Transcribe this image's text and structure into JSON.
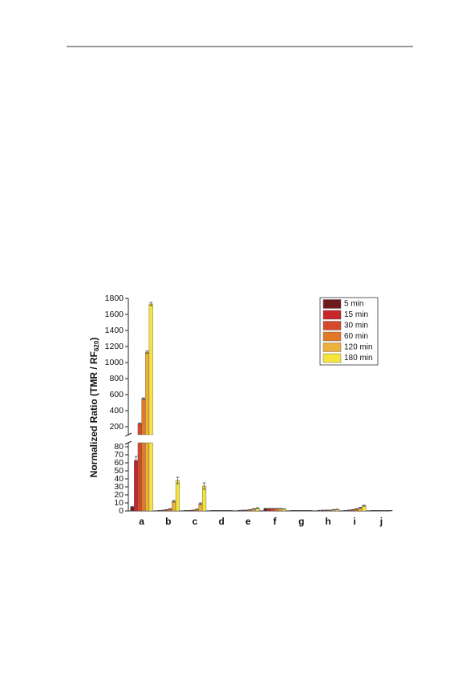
{
  "chart_data": {
    "type": "broken-bar",
    "y_label": {
      "main": "Normalized Ratio (TMR / RF",
      "subscript": "620",
      "end": ")"
    },
    "categories": [
      "a",
      "b",
      "c",
      "d",
      "e",
      "f",
      "g",
      "h",
      "i",
      "j"
    ],
    "ylim_lower": [
      0,
      85
    ],
    "yticks_lower": [
      0,
      10,
      20,
      30,
      40,
      50,
      60,
      70,
      80
    ],
    "ylim_upper": [
      100,
      1800
    ],
    "yticks_upper": [
      200,
      400,
      600,
      800,
      1000,
      1200,
      1400,
      1600,
      1800
    ],
    "series": [
      {
        "name": "5 min",
        "color": "#6e1b1c",
        "values": [
          5,
          0.5,
          0.5,
          0.5,
          0.5,
          3,
          0.5,
          0.5,
          0.5,
          0.5
        ],
        "errors": [
          0.5,
          0.2,
          0.2,
          0.2,
          0.2,
          0.3,
          0.2,
          0.2,
          0.2,
          0.2
        ]
      },
      {
        "name": "15 min",
        "color": "#c7262b",
        "values": [
          63,
          0.8,
          0.5,
          0.5,
          0.8,
          3,
          0.5,
          0.8,
          1,
          0.5
        ],
        "errors": [
          5,
          0.2,
          0.2,
          0.2,
          0.2,
          0.3,
          0.2,
          0.2,
          0.2,
          0.2
        ]
      },
      {
        "name": "30 min",
        "color": "#d4492b",
        "values": [
          240,
          1.5,
          1,
          0.5,
          1,
          3,
          0.5,
          1,
          1.5,
          0.5
        ],
        "errors": [
          8,
          0.3,
          0.2,
          0.2,
          0.2,
          0.3,
          0.2,
          0.2,
          0.3,
          0.2
        ]
      },
      {
        "name": "60 min",
        "color": "#e07a28",
        "values": [
          550,
          2.5,
          2,
          0.5,
          1.5,
          3,
          0.5,
          1,
          2.5,
          0.5
        ],
        "errors": [
          10,
          0.4,
          0.3,
          0.2,
          0.3,
          0.3,
          0.2,
          0.2,
          0.4,
          0.2
        ]
      },
      {
        "name": "120 min",
        "color": "#edb03a",
        "values": [
          1130,
          12,
          9,
          0.5,
          2.5,
          3,
          0.5,
          1.5,
          4,
          0.5
        ],
        "errors": [
          15,
          1,
          1,
          0.2,
          0.4,
          0.3,
          0.2,
          0.3,
          0.5,
          0.2
        ]
      },
      {
        "name": "180 min",
        "color": "#f4e43d",
        "values": [
          1730,
          38,
          31,
          0.5,
          3.5,
          2.5,
          0.5,
          2,
          6.5,
          0.5
        ],
        "errors": [
          20,
          4,
          4,
          0.2,
          0.5,
          0.3,
          0.2,
          0.3,
          0.6,
          0.2
        ]
      }
    ]
  }
}
